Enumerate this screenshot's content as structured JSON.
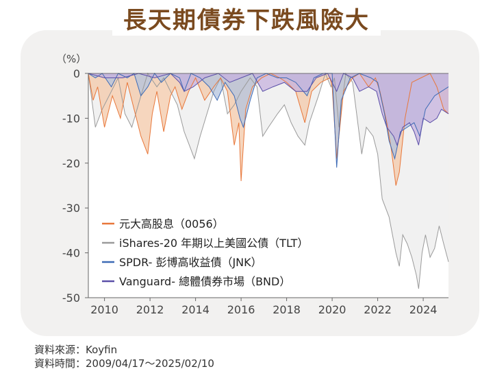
{
  "title": "長天期債券下跌風險大",
  "chart_data": {
    "type": "area",
    "ylabel": "（%）",
    "xlim": [
      2009.29,
      2025.11
    ],
    "ylim": [
      -50,
      0
    ],
    "y_ticks": [
      0,
      -10,
      -20,
      -30,
      -40,
      -50
    ],
    "x_ticks": [
      "2010",
      "2012",
      "2014",
      "2016",
      "2018",
      "2020",
      "2022",
      "2024"
    ],
    "grid": false,
    "legend_position": "lower-left",
    "series": [
      {
        "name": "元大高股息（0056）",
        "color": "#e8773a",
        "fill": "#f3c8a8",
        "points": [
          [
            2009.29,
            0
          ],
          [
            2009.5,
            -6
          ],
          [
            2009.7,
            -3
          ],
          [
            2010.0,
            -12
          ],
          [
            2010.35,
            -5
          ],
          [
            2010.7,
            -10
          ],
          [
            2011.0,
            -2
          ],
          [
            2011.3,
            -8
          ],
          [
            2011.6,
            -14
          ],
          [
            2011.9,
            -18
          ],
          [
            2012.1,
            -9
          ],
          [
            2012.3,
            -4
          ],
          [
            2012.6,
            -13
          ],
          [
            2012.9,
            -5
          ],
          [
            2013.1,
            -3
          ],
          [
            2013.4,
            -8
          ],
          [
            2013.7,
            -4
          ],
          [
            2014.0,
            -1
          ],
          [
            2014.4,
            -6
          ],
          [
            2014.8,
            -3
          ],
          [
            2015.1,
            -1
          ],
          [
            2015.4,
            -4
          ],
          [
            2015.7,
            -16
          ],
          [
            2015.9,
            -11
          ],
          [
            2016.0,
            -24
          ],
          [
            2016.2,
            -8
          ],
          [
            2016.5,
            -3
          ],
          [
            2016.9,
            -1
          ],
          [
            2017.3,
            0
          ],
          [
            2017.7,
            -1
          ],
          [
            2018.0,
            -2
          ],
          [
            2018.4,
            -4
          ],
          [
            2018.8,
            -11
          ],
          [
            2019.1,
            -4
          ],
          [
            2019.5,
            -2
          ],
          [
            2019.9,
            -1
          ],
          [
            2020.0,
            -3
          ],
          [
            2020.2,
            -19
          ],
          [
            2020.5,
            -4
          ],
          [
            2020.9,
            -1
          ],
          [
            2021.2,
            0
          ],
          [
            2021.6,
            -3
          ],
          [
            2021.9,
            -1
          ],
          [
            2022.1,
            -4
          ],
          [
            2022.4,
            -11
          ],
          [
            2022.6,
            -17
          ],
          [
            2022.8,
            -25
          ],
          [
            2022.95,
            -22
          ],
          [
            2023.2,
            -10
          ],
          [
            2023.5,
            -2
          ],
          [
            2023.9,
            -1
          ],
          [
            2024.3,
            0
          ],
          [
            2024.6,
            -3
          ],
          [
            2024.9,
            -8
          ],
          [
            2025.11,
            -9
          ]
        ]
      },
      {
        "name": "iShares-20 年期以上美國公債（TLT）",
        "color": "#9a9a9a",
        "fill": "#ececec",
        "points": [
          [
            2009.29,
            0
          ],
          [
            2009.6,
            -12
          ],
          [
            2009.9,
            -8
          ],
          [
            2010.2,
            -5
          ],
          [
            2010.6,
            -1
          ],
          [
            2010.9,
            -9
          ],
          [
            2011.2,
            -12
          ],
          [
            2011.6,
            -5
          ],
          [
            2011.9,
            0
          ],
          [
            2012.3,
            -3
          ],
          [
            2012.6,
            -1
          ],
          [
            2012.9,
            -4
          ],
          [
            2013.2,
            -7
          ],
          [
            2013.5,
            -13
          ],
          [
            2013.8,
            -17
          ],
          [
            2013.95,
            -19
          ],
          [
            2014.2,
            -14
          ],
          [
            2014.5,
            -9
          ],
          [
            2014.8,
            -4
          ],
          [
            2015.1,
            -1
          ],
          [
            2015.4,
            -9
          ],
          [
            2015.7,
            -7
          ],
          [
            2016.0,
            -4
          ],
          [
            2016.4,
            -1
          ],
          [
            2016.7,
            -3
          ],
          [
            2016.95,
            -14
          ],
          [
            2017.2,
            -12
          ],
          [
            2017.6,
            -9
          ],
          [
            2017.9,
            -7
          ],
          [
            2018.2,
            -11
          ],
          [
            2018.5,
            -14
          ],
          [
            2018.8,
            -16
          ],
          [
            2019.0,
            -11
          ],
          [
            2019.4,
            -5
          ],
          [
            2019.7,
            0
          ],
          [
            2019.95,
            -3
          ],
          [
            2020.1,
            -1
          ],
          [
            2020.3,
            -12
          ],
          [
            2020.6,
            0
          ],
          [
            2020.9,
            -2
          ],
          [
            2021.1,
            -10
          ],
          [
            2021.3,
            -18
          ],
          [
            2021.5,
            -12
          ],
          [
            2021.8,
            -14
          ],
          [
            2022.0,
            -18
          ],
          [
            2022.2,
            -28
          ],
          [
            2022.5,
            -32
          ],
          [
            2022.8,
            -40
          ],
          [
            2022.95,
            -43
          ],
          [
            2023.1,
            -36
          ],
          [
            2023.3,
            -38
          ],
          [
            2023.5,
            -41
          ],
          [
            2023.7,
            -45
          ],
          [
            2023.8,
            -48
          ],
          [
            2023.95,
            -40
          ],
          [
            2024.1,
            -36
          ],
          [
            2024.3,
            -41
          ],
          [
            2024.5,
            -39
          ],
          [
            2024.7,
            -34
          ],
          [
            2024.9,
            -38
          ],
          [
            2025.11,
            -42
          ]
        ]
      },
      {
        "name": "SPDR- 彭博高收益債（JNK）",
        "color": "#3d6ab5",
        "fill": "#b3c3de",
        "points": [
          [
            2009.29,
            0
          ],
          [
            2009.6,
            -1
          ],
          [
            2009.9,
            0
          ],
          [
            2010.3,
            -3
          ],
          [
            2010.6,
            0
          ],
          [
            2011.0,
            -1
          ],
          [
            2011.3,
            0
          ],
          [
            2011.6,
            -5
          ],
          [
            2011.9,
            -3
          ],
          [
            2012.2,
            0
          ],
          [
            2012.5,
            -2
          ],
          [
            2012.9,
            0
          ],
          [
            2013.3,
            -1
          ],
          [
            2013.5,
            -4
          ],
          [
            2013.8,
            0
          ],
          [
            2014.2,
            -1
          ],
          [
            2014.6,
            -3
          ],
          [
            2014.95,
            -6
          ],
          [
            2015.3,
            -2
          ],
          [
            2015.7,
            -5
          ],
          [
            2015.95,
            -10
          ],
          [
            2016.1,
            -12
          ],
          [
            2016.4,
            -6
          ],
          [
            2016.7,
            -1
          ],
          [
            2017.1,
            0
          ],
          [
            2017.6,
            -1
          ],
          [
            2018.0,
            -1
          ],
          [
            2018.4,
            -2
          ],
          [
            2018.9,
            -5
          ],
          [
            2019.2,
            -1
          ],
          [
            2019.6,
            0
          ],
          [
            2020.0,
            0
          ],
          [
            2020.2,
            -21
          ],
          [
            2020.4,
            -6
          ],
          [
            2020.8,
            -1
          ],
          [
            2021.2,
            0
          ],
          [
            2021.7,
            -1
          ],
          [
            2022.0,
            -2
          ],
          [
            2022.3,
            -9
          ],
          [
            2022.5,
            -15
          ],
          [
            2022.75,
            -19
          ],
          [
            2023.0,
            -13
          ],
          [
            2023.3,
            -12
          ],
          [
            2023.6,
            -11
          ],
          [
            2023.85,
            -14
          ],
          [
            2024.1,
            -8
          ],
          [
            2024.5,
            -5
          ],
          [
            2024.8,
            -4
          ],
          [
            2025.11,
            -3
          ]
        ]
      },
      {
        "name": "Vanguard- 總體債券市場（BND）",
        "color": "#5a4fa8",
        "fill": "#c6b2dd",
        "points": [
          [
            2009.29,
            0
          ],
          [
            2010.0,
            -1
          ],
          [
            2010.8,
            -1
          ],
          [
            2011.5,
            0
          ],
          [
            2012.2,
            -1
          ],
          [
            2012.9,
            0
          ],
          [
            2013.3,
            -2
          ],
          [
            2013.5,
            -4
          ],
          [
            2013.9,
            -3
          ],
          [
            2014.4,
            -1
          ],
          [
            2015.0,
            0
          ],
          [
            2015.5,
            -2
          ],
          [
            2016.0,
            -1
          ],
          [
            2016.5,
            0
          ],
          [
            2016.95,
            -4
          ],
          [
            2017.4,
            -3
          ],
          [
            2017.9,
            -2
          ],
          [
            2018.4,
            -4
          ],
          [
            2018.9,
            -4
          ],
          [
            2019.3,
            -1
          ],
          [
            2019.8,
            0
          ],
          [
            2020.2,
            -4
          ],
          [
            2020.5,
            0
          ],
          [
            2020.9,
            -1
          ],
          [
            2021.2,
            -4
          ],
          [
            2021.6,
            -3
          ],
          [
            2021.95,
            -4
          ],
          [
            2022.2,
            -9
          ],
          [
            2022.4,
            -12
          ],
          [
            2022.7,
            -14
          ],
          [
            2022.85,
            -16
          ],
          [
            2023.1,
            -12
          ],
          [
            2023.4,
            -11
          ],
          [
            2023.6,
            -13
          ],
          [
            2023.8,
            -16
          ],
          [
            2024.0,
            -10
          ],
          [
            2024.3,
            -11
          ],
          [
            2024.6,
            -10
          ],
          [
            2024.8,
            -8
          ],
          [
            2025.11,
            -9
          ]
        ]
      }
    ]
  },
  "footer": {
    "source": "資料來源：Koyfin",
    "period": "資料時間：2009/04/17～2025/02/10"
  }
}
